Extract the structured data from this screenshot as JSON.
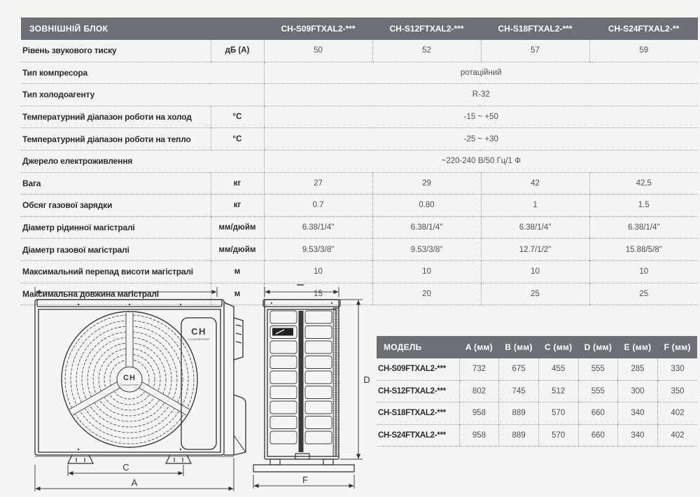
{
  "spec_table": {
    "title": "ЗОВНІШНІЙ БЛОК",
    "models": [
      "CH-S09FTXAL2-***",
      "CH-S12FTXAL2-***",
      "CH-S18FTXAL2-***",
      "CH-S24FTXAL2-**"
    ],
    "rows": [
      {
        "label": "Рівень звукового тиску",
        "unit": "дБ (А)",
        "values": [
          "50",
          "52",
          "57",
          "59"
        ]
      },
      {
        "label": "Тип компресора",
        "unit": "",
        "span": "ротаційний"
      },
      {
        "label": "Тип холодоагенту",
        "unit": "",
        "span": "R-32"
      },
      {
        "label": "Температурний діапазон роботи на холод",
        "unit": "°С",
        "span": "-15 ~ +50"
      },
      {
        "label": "Температурний діапазон роботи на тепло",
        "unit": "°С",
        "span": "-25 ~ +30"
      },
      {
        "label": "Джерело електроживлення",
        "unit": "",
        "span": "~220-240 В/50 Гц/1 Ф"
      },
      {
        "label": "Вага",
        "unit": "кг",
        "values": [
          "27",
          "29",
          "42",
          "42,5"
        ]
      },
      {
        "label": "Обсяг газової зарядки",
        "unit": "кг",
        "values": [
          "0.7",
          "0.80",
          "1",
          "1.5"
        ]
      },
      {
        "label": "Діаметр рідинної магістралі",
        "unit": "мм/дюйм",
        "values": [
          "6.38/1/4\"",
          "6.38/1/4\"",
          "6.38/1/4\"",
          "6.38/1/4\""
        ]
      },
      {
        "label": "Діаметр газової магістралі",
        "unit": "мм/дюйм",
        "values": [
          "9.53/3/8\"",
          "9.53/3/8\"",
          "12.7/1/2\"",
          "15.88/5/8\""
        ]
      },
      {
        "label": "Максимальний перепад висоти магістралі",
        "unit": "м",
        "values": [
          "10",
          "10",
          "10",
          "10"
        ]
      },
      {
        "label": "Максимальна довжина магістралі",
        "unit": "м",
        "values": [
          "15",
          "20",
          "25",
          "25"
        ]
      }
    ]
  },
  "dim_table": {
    "headers": [
      "МОДЕЛЬ",
      "A (мм)",
      "B (мм)",
      "C (мм)",
      "D (мм)",
      "E (мм)",
      "F (мм)"
    ],
    "rows": [
      {
        "model": "CH-S09FTXAL2-***",
        "values": [
          "732",
          "675",
          "455",
          "555",
          "285",
          "330"
        ]
      },
      {
        "model": "CH-S12FTXAL2-***",
        "values": [
          "802",
          "745",
          "512",
          "555",
          "300",
          "350"
        ]
      },
      {
        "model": "CH-S18FTXAL2-***",
        "values": [
          "958",
          "889",
          "570",
          "660",
          "340",
          "402"
        ]
      },
      {
        "model": "CH-S24FTXAL2-***",
        "values": [
          "958",
          "889",
          "570",
          "660",
          "340",
          "402"
        ]
      }
    ]
  },
  "drawing": {
    "front": {
      "inner_width_label": "C",
      "outer_width_label": "A"
    },
    "side": {
      "height_label": "D",
      "base_width_label": "F"
    },
    "logo": {
      "mark": "CH",
      "name": "Cooper&Hunter"
    }
  },
  "colors": {
    "header_bg": "#6b7076",
    "page_bg": "#f5f5f3",
    "dotted_line": "#9b9b9b",
    "label_text": "#2a2a2a",
    "value_text": "#4f4f4f"
  }
}
